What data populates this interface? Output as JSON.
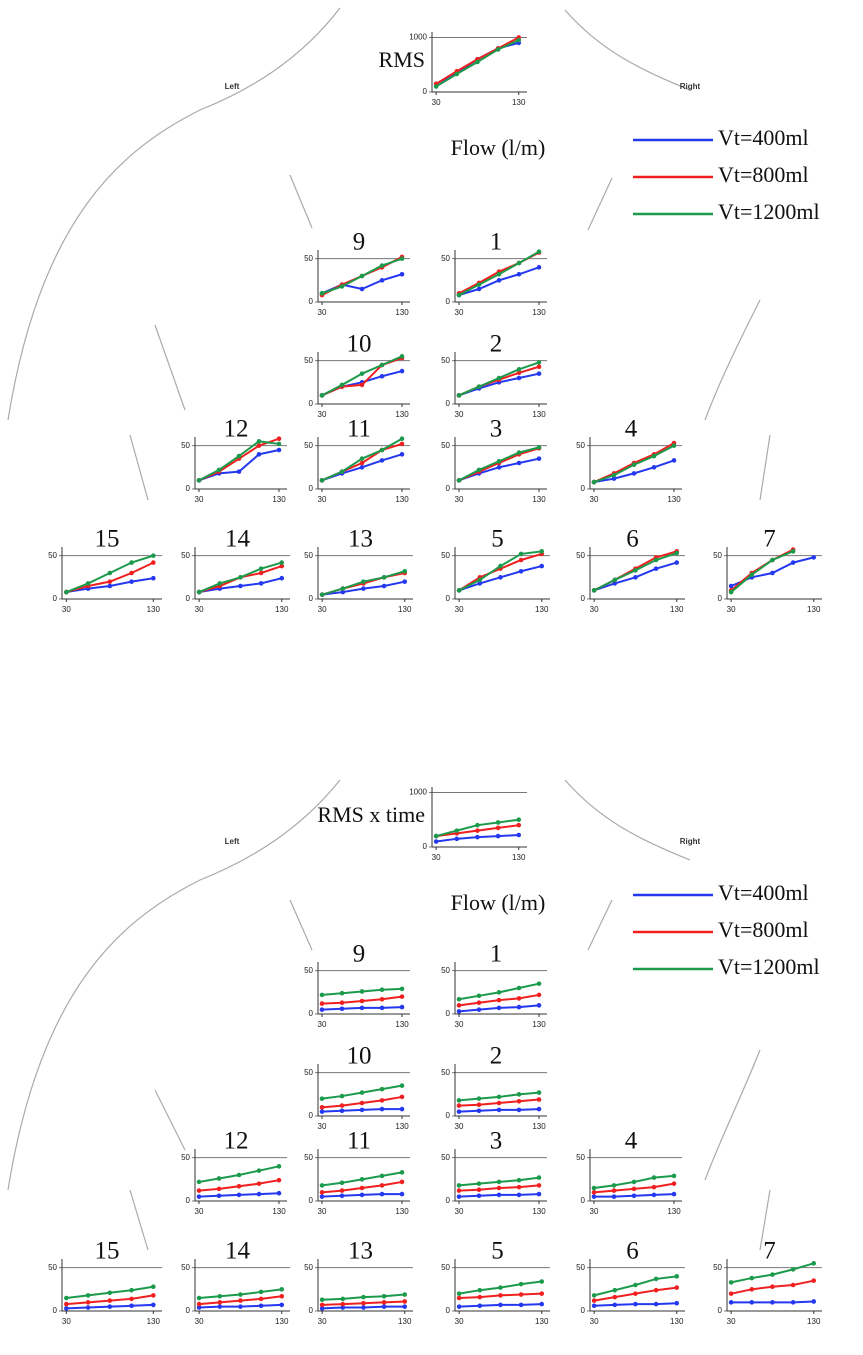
{
  "chart_data": [
    {
      "type": "line",
      "title": "RMS",
      "left_label": "Left",
      "right_label": "Right",
      "xlabel": "Flow (l/m)",
      "x": [
        30,
        55,
        80,
        105,
        130
      ],
      "xlim": [
        25,
        140
      ],
      "xticks": [
        30,
        130
      ],
      "series": [
        {
          "name": "Vt=400ml",
          "color": "#2438f0"
        },
        {
          "name": "Vt=800ml",
          "color": "#f02020"
        },
        {
          "name": "Vt=1200ml",
          "color": "#1c9a4c"
        }
      ],
      "charts": [
        {
          "ylim": [
            0,
            1100
          ],
          "yticks": [
            0,
            1000
          ],
          "values": [
            [
              150,
              350,
              600,
              800,
              900
            ],
            [
              150,
              380,
              600,
              800,
              1000
            ],
            [
              100,
              330,
              550,
              780,
              950
            ]
          ]
        },
        {
          "title": "9",
          "ylim": [
            0,
            60
          ],
          "yticks": [
            0,
            50
          ],
          "values": [
            [
              10,
              20,
              15,
              25,
              32
            ],
            [
              8,
              20,
              30,
              40,
              52
            ],
            [
              10,
              18,
              30,
              42,
              50
            ]
          ]
        },
        {
          "title": "1",
          "ylim": [
            0,
            60
          ],
          "yticks": [
            0,
            50
          ],
          "values": [
            [
              8,
              15,
              25,
              32,
              40
            ],
            [
              10,
              22,
              35,
              45,
              57
            ],
            [
              8,
              20,
              32,
              45,
              58
            ]
          ]
        },
        {
          "title": "10",
          "ylim": [
            0,
            60
          ],
          "yticks": [
            0,
            50
          ],
          "values": [
            [
              10,
              20,
              25,
              32,
              38
            ],
            [
              10,
              20,
              22,
              45,
              53
            ],
            [
              10,
              22,
              35,
              45,
              55
            ]
          ]
        },
        {
          "title": "2",
          "ylim": [
            0,
            60
          ],
          "yticks": [
            0,
            50
          ],
          "values": [
            [
              10,
              18,
              25,
              30,
              35
            ],
            [
              10,
              20,
              28,
              36,
              43
            ],
            [
              10,
              20,
              30,
              40,
              48
            ]
          ]
        },
        {
          "title": "12",
          "ylim": [
            0,
            60
          ],
          "yticks": [
            0,
            50
          ],
          "values": [
            [
              10,
              18,
              20,
              40,
              45
            ],
            [
              10,
              20,
              35,
              50,
              58
            ],
            [
              10,
              22,
              38,
              55,
              52
            ]
          ]
        },
        {
          "title": "11",
          "ylim": [
            0,
            60
          ],
          "yticks": [
            0,
            50
          ],
          "values": [
            [
              10,
              18,
              25,
              33,
              40
            ],
            [
              10,
              20,
              30,
              45,
              52
            ],
            [
              10,
              20,
              35,
              45,
              58
            ]
          ]
        },
        {
          "title": "3",
          "ylim": [
            0,
            60
          ],
          "yticks": [
            0,
            50
          ],
          "values": [
            [
              10,
              18,
              25,
              30,
              35
            ],
            [
              10,
              20,
              30,
              40,
              47
            ],
            [
              10,
              22,
              32,
              42,
              48
            ]
          ]
        },
        {
          "title": "4",
          "ylim": [
            0,
            60
          ],
          "yticks": [
            0,
            50
          ],
          "values": [
            [
              8,
              12,
              18,
              25,
              33
            ],
            [
              8,
              18,
              30,
              40,
              53
            ],
            [
              8,
              16,
              28,
              38,
              50
            ]
          ]
        },
        {
          "title": "15",
          "ylim": [
            0,
            60
          ],
          "yticks": [
            0,
            50
          ],
          "values": [
            [
              8,
              12,
              15,
              20,
              24
            ],
            [
              8,
              15,
              20,
              30,
              42
            ],
            [
              8,
              18,
              30,
              42,
              50
            ]
          ]
        },
        {
          "title": "14",
          "ylim": [
            0,
            60
          ],
          "yticks": [
            0,
            50
          ],
          "values": [
            [
              8,
              12,
              15,
              18,
              24
            ],
            [
              8,
              15,
              25,
              30,
              38
            ],
            [
              8,
              18,
              25,
              35,
              42
            ]
          ]
        },
        {
          "title": "13",
          "ylim": [
            0,
            60
          ],
          "yticks": [
            0,
            50
          ],
          "values": [
            [
              5,
              8,
              12,
              15,
              20
            ],
            [
              5,
              12,
              18,
              25,
              30
            ],
            [
              5,
              12,
              20,
              25,
              32
            ]
          ]
        },
        {
          "title": "5",
          "ylim": [
            0,
            60
          ],
          "yticks": [
            0,
            50
          ],
          "values": [
            [
              10,
              18,
              25,
              32,
              38
            ],
            [
              10,
              25,
              35,
              45,
              52
            ],
            [
              10,
              22,
              38,
              52,
              55
            ]
          ]
        },
        {
          "title": "6",
          "ylim": [
            0,
            60
          ],
          "yticks": [
            0,
            50
          ],
          "values": [
            [
              10,
              18,
              25,
              35,
              42
            ],
            [
              10,
              22,
              35,
              48,
              55
            ],
            [
              10,
              22,
              33,
              45,
              53
            ]
          ]
        },
        {
          "title": "7",
          "ylim": [
            0,
            60
          ],
          "yticks": [
            0,
            50
          ],
          "values": [
            [
              15,
              25,
              30,
              42,
              48
            ],
            [
              10,
              30,
              45,
              57,
              null
            ],
            [
              8,
              28,
              45,
              55,
              null
            ]
          ]
        }
      ]
    },
    {
      "type": "line",
      "title": "RMS x time",
      "left_label": "Left",
      "right_label": "Right",
      "xlabel": "Flow (l/m)",
      "x": [
        30,
        55,
        80,
        105,
        130
      ],
      "xlim": [
        25,
        140
      ],
      "xticks": [
        30,
        130
      ],
      "series": [
        {
          "name": "Vt=400ml",
          "color": "#2438f0"
        },
        {
          "name": "Vt=800ml",
          "color": "#f02020"
        },
        {
          "name": "Vt=1200ml",
          "color": "#1c9a4c"
        }
      ],
      "charts": [
        {
          "ylim": [
            0,
            1100
          ],
          "yticks": [
            0,
            1000
          ],
          "values": [
            [
              100,
              150,
              180,
              200,
              220
            ],
            [
              200,
              250,
              300,
              350,
              400
            ],
            [
              200,
              300,
              400,
              450,
              500
            ]
          ]
        },
        {
          "title": "9",
          "ylim": [
            0,
            60
          ],
          "yticks": [
            0,
            50
          ],
          "values": [
            [
              5,
              6,
              7,
              7,
              8
            ],
            [
              12,
              13,
              15,
              17,
              20
            ],
            [
              22,
              24,
              26,
              28,
              29
            ]
          ]
        },
        {
          "title": "1",
          "ylim": [
            0,
            60
          ],
          "yticks": [
            0,
            50
          ],
          "values": [
            [
              3,
              5,
              7,
              8,
              10
            ],
            [
              10,
              13,
              16,
              18,
              22
            ],
            [
              17,
              21,
              25,
              30,
              35
            ]
          ]
        },
        {
          "title": "10",
          "ylim": [
            0,
            60
          ],
          "yticks": [
            0,
            50
          ],
          "values": [
            [
              5,
              6,
              7,
              8,
              8
            ],
            [
              10,
              12,
              15,
              18,
              22
            ],
            [
              20,
              23,
              27,
              31,
              35
            ]
          ]
        },
        {
          "title": "2",
          "ylim": [
            0,
            60
          ],
          "yticks": [
            0,
            50
          ],
          "values": [
            [
              5,
              6,
              7,
              7,
              8
            ],
            [
              12,
              13,
              15,
              17,
              19
            ],
            [
              18,
              20,
              22,
              25,
              27
            ]
          ]
        },
        {
          "title": "12",
          "ylim": [
            0,
            60
          ],
          "yticks": [
            0,
            50
          ],
          "values": [
            [
              5,
              6,
              7,
              8,
              9
            ],
            [
              12,
              14,
              17,
              20,
              24
            ],
            [
              22,
              26,
              30,
              35,
              40
            ]
          ]
        },
        {
          "title": "11",
          "ylim": [
            0,
            60
          ],
          "yticks": [
            0,
            50
          ],
          "values": [
            [
              5,
              6,
              7,
              8,
              8
            ],
            [
              10,
              12,
              15,
              18,
              22
            ],
            [
              18,
              21,
              25,
              29,
              33
            ]
          ]
        },
        {
          "title": "3",
          "ylim": [
            0,
            60
          ],
          "yticks": [
            0,
            50
          ],
          "values": [
            [
              5,
              6,
              7,
              7,
              8
            ],
            [
              12,
              13,
              15,
              16,
              18
            ],
            [
              18,
              20,
              22,
              24,
              27
            ]
          ]
        },
        {
          "title": "4",
          "ylim": [
            0,
            60
          ],
          "yticks": [
            0,
            50
          ],
          "values": [
            [
              5,
              5,
              6,
              7,
              8
            ],
            [
              10,
              12,
              14,
              16,
              20
            ],
            [
              15,
              18,
              22,
              27,
              29
            ]
          ]
        },
        {
          "title": "15",
          "ylim": [
            0,
            60
          ],
          "yticks": [
            0,
            50
          ],
          "values": [
            [
              3,
              4,
              5,
              6,
              7
            ],
            [
              8,
              10,
              12,
              14,
              18
            ],
            [
              15,
              18,
              21,
              24,
              28
            ]
          ]
        },
        {
          "title": "14",
          "ylim": [
            0,
            60
          ],
          "yticks": [
            0,
            50
          ],
          "values": [
            [
              4,
              5,
              5,
              6,
              7
            ],
            [
              8,
              10,
              12,
              14,
              17
            ],
            [
              15,
              17,
              19,
              22,
              25
            ]
          ]
        },
        {
          "title": "13",
          "ylim": [
            0,
            60
          ],
          "yticks": [
            0,
            50
          ],
          "values": [
            [
              3,
              4,
              4,
              5,
              5
            ],
            [
              7,
              8,
              9,
              10,
              11
            ],
            [
              13,
              14,
              16,
              17,
              19
            ]
          ]
        },
        {
          "title": "5",
          "ylim": [
            0,
            60
          ],
          "yticks": [
            0,
            50
          ],
          "values": [
            [
              5,
              6,
              7,
              7,
              8
            ],
            [
              15,
              16,
              18,
              19,
              20
            ],
            [
              20,
              24,
              27,
              31,
              34
            ]
          ]
        },
        {
          "title": "6",
          "ylim": [
            0,
            60
          ],
          "yticks": [
            0,
            50
          ],
          "values": [
            [
              6,
              7,
              8,
              8,
              9
            ],
            [
              12,
              16,
              20,
              24,
              27
            ],
            [
              18,
              24,
              30,
              37,
              40
            ]
          ]
        },
        {
          "title": "7",
          "ylim": [
            0,
            60
          ],
          "yticks": [
            0,
            50
          ],
          "values": [
            [
              10,
              10,
              10,
              10,
              11
            ],
            [
              20,
              25,
              28,
              30,
              35
            ],
            [
              33,
              38,
              42,
              48,
              55
            ]
          ]
        }
      ]
    }
  ]
}
